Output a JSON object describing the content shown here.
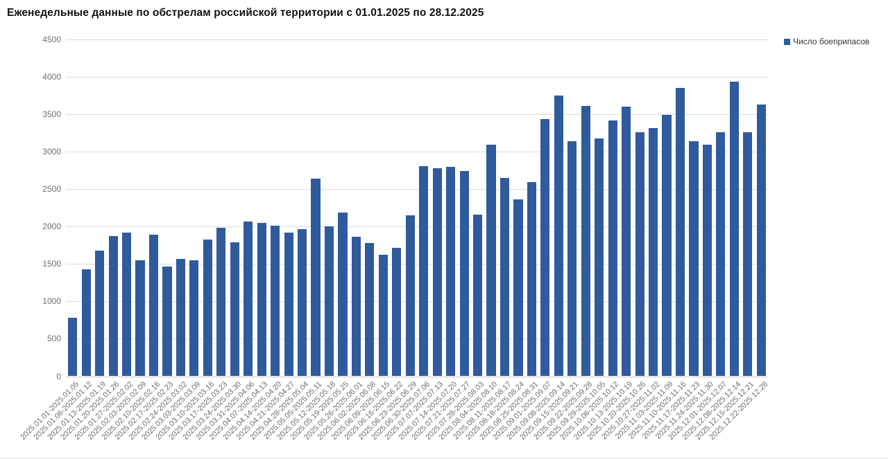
{
  "title": "Еженедельные данные по обстрелам российской территории с 01.01.2025 по 28.12.2025",
  "legend": {
    "series_label": "Число боеприпасов"
  },
  "colors": {
    "bar": "#2f5b9d",
    "gridline": "#dadada",
    "baseline": "#c9c9c9",
    "axis_text": "#6e6e6e",
    "title_text": "#111111",
    "legend_text": "#333333",
    "background": "#ffffff"
  },
  "chart_data": {
    "type": "bar",
    "title": "Еженедельные данные по обстрелам российской территории с 01.01.2025 по 28.12.2025",
    "legend_entries": [
      "Число боеприпасов"
    ],
    "legend_position": "top-right",
    "grid": true,
    "xlabel": "",
    "ylabel": "",
    "ylim": [
      0,
      4500
    ],
    "ytick_step": 500,
    "categories": [
      "2025.01.01-2025.01.05",
      "2025.01.06-2025.01.12",
      "2025.01.13-2025.01.19",
      "2025.01.20-2025.01.26",
      "2025.01.27-2025.02.02",
      "2025.02.03-2025.02.09",
      "2025.02.10-2025.02.16",
      "2025.02.17-2025.02.23",
      "2025.02.24-2025.03.02",
      "2025.03.03-2025.03.09",
      "2025.03.10-2025.03.16",
      "2025.03.17-2025.03.23",
      "2025.03.24-2025.03.30",
      "2025.03.31-2025.04.06",
      "2025.04.07-2025.04.13",
      "2025.04.14-2025.04.20",
      "2025.04.21-2025.04.27",
      "2025.04.28-2025.05.04",
      "2025.05.05-2025.05.11",
      "2025.05.12-2025.05.18",
      "2025.05.19-2025.05.25",
      "2025.05.26-2025.06.01",
      "2025.06.02-2025.06.08",
      "2025.06.09-2025.06.15",
      "2025.06.16-2025.06.22",
      "2025.06.23-2025.06.29",
      "2025.06.30-2025.07.06",
      "2025.07.07-2025.07.13",
      "2025.07.14-2025.07.20",
      "2025.07.21-2025.07.27",
      "2025.07.28-2025.08.03",
      "2025.08.04-2025.08.10",
      "2025.08.11-2025.08.17",
      "2025.08.18-2025.08.24",
      "2025.08.25-2025.08.31",
      "2025.09.01-2025.09.07",
      "2025.09.08-2025.09.14",
      "2025.09.15-2025.09.21",
      "2025.09.22-2025.09.28",
      "2025.09.29-2025.10.05",
      "2025.10.06-2025.10.12",
      "2025.10.13-2025.10.19",
      "2025.10.20-2025.10.26",
      "2025.10.27-2025.11.02",
      "2025.11.03-2025.11.09",
      "2025.11.10-2025.11.16",
      "2025.11.17-2025.11.23",
      "2025.11.24-2025.11.30",
      "2025.12.01-2025.12.07",
      "2025.12.08-2025.12.14",
      "2025.12.15-2025.12.21",
      "2025.12.22-2025.12.28"
    ],
    "values": [
      780,
      1430,
      1680,
      1870,
      1920,
      1550,
      1890,
      1470,
      1570,
      1550,
      1830,
      1980,
      1790,
      2070,
      2050,
      2010,
      1920,
      1970,
      2640,
      2000,
      2190,
      1860,
      1780,
      1620,
      1720,
      2150,
      2810,
      2780,
      2800,
      2740,
      2160,
      3090,
      2650,
      2360,
      2590,
      3440,
      3750,
      3140,
      3610,
      3180,
      3420,
      3600,
      3260,
      3320,
      3490,
      3850,
      3140,
      3090,
      3260,
      3940,
      3260,
      3630
    ]
  }
}
